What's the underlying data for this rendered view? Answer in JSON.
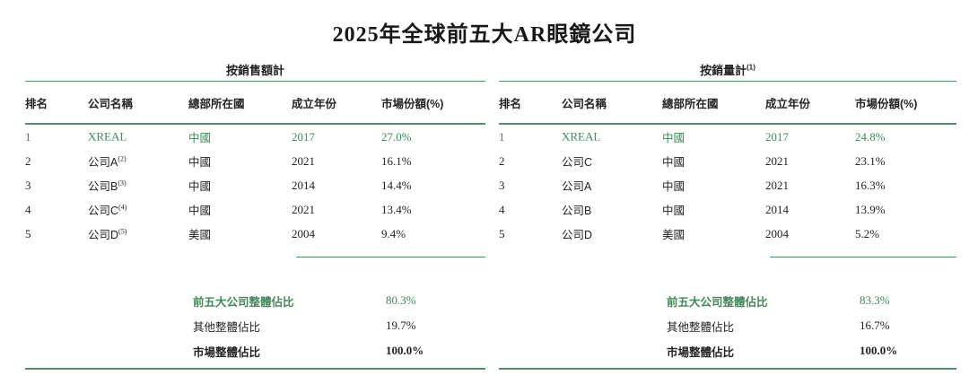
{
  "title": "2025年全球前五大AR眼鏡公司",
  "columns": [
    "排名",
    "公司名稱",
    "總部所在國",
    "成立年份",
    "市場份額(%)"
  ],
  "colors": {
    "green_text": "#3e8a56",
    "green_line": "#4f9164",
    "text": "#262223"
  },
  "tables": [
    {
      "group_title": "按銷售額計",
      "group_sup": "",
      "rows": [
        {
          "rank": "1",
          "company": "XREAL",
          "sup": "",
          "hq": "中國",
          "founded": "2017",
          "share": "27.0%"
        },
        {
          "rank": "2",
          "company": "公司A",
          "sup": "(2)",
          "hq": "中國",
          "founded": "2021",
          "share": "16.1%"
        },
        {
          "rank": "3",
          "company": "公司B",
          "sup": "(3)",
          "hq": "中國",
          "founded": "2014",
          "share": "14.4%"
        },
        {
          "rank": "4",
          "company": "公司C",
          "sup": "(4)",
          "hq": "中國",
          "founded": "2021",
          "share": "13.4%"
        },
        {
          "rank": "5",
          "company": "公司D",
          "sup": "(5)",
          "hq": "美國",
          "founded": "2004",
          "share": "9.4%"
        }
      ],
      "summary": [
        {
          "label": "前五大公司整體佔比",
          "value": "80.3%"
        },
        {
          "label": "其他整體佔比",
          "value": "19.7%"
        },
        {
          "label": "市場整體佔比",
          "value": "100.0%"
        }
      ]
    },
    {
      "group_title": "按銷量計",
      "group_sup": "(1)",
      "rows": [
        {
          "rank": "1",
          "company": "XREAL",
          "sup": "",
          "hq": "中國",
          "founded": "2017",
          "share": "24.8%"
        },
        {
          "rank": "2",
          "company": "公司C",
          "sup": "",
          "hq": "中國",
          "founded": "2021",
          "share": "23.1%"
        },
        {
          "rank": "3",
          "company": "公司A",
          "sup": "",
          "hq": "中國",
          "founded": "2021",
          "share": "16.3%"
        },
        {
          "rank": "4",
          "company": "公司B",
          "sup": "",
          "hq": "中國",
          "founded": "2014",
          "share": "13.9%"
        },
        {
          "rank": "5",
          "company": "公司D",
          "sup": "",
          "hq": "美國",
          "founded": "2004",
          "share": "5.2%"
        }
      ],
      "summary": [
        {
          "label": "前五大公司整體佔比",
          "value": "83.3%"
        },
        {
          "label": "其他整體佔比",
          "value": "16.7%"
        },
        {
          "label": "市場整體佔比",
          "value": "100.0%"
        }
      ]
    }
  ]
}
